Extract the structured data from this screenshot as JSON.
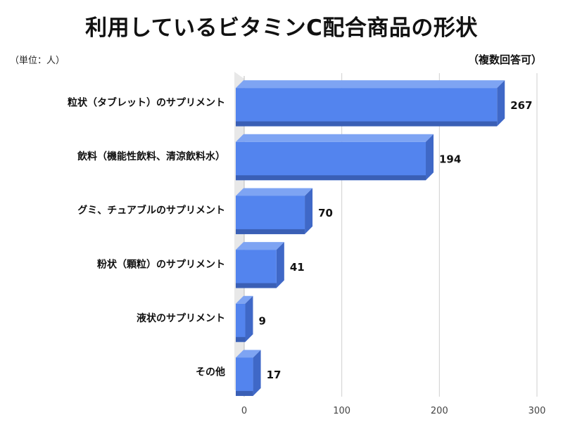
{
  "title": "利用しているビタミンC配合商品の形状",
  "unit_note": "（単位：人）",
  "multi_answer_note": "（複数回答可）",
  "chart_data": {
    "type": "bar",
    "orientation": "horizontal",
    "title": "利用しているビタミンC配合商品の形状",
    "categories": [
      "粒状（タブレット）のサプリメント",
      "飲料（機能性飲料、清涼飲料水）",
      "グミ、チュアブルのサプリメント",
      "粉状（顆粒）のサプリメント",
      "液状のサプリメント",
      "その他"
    ],
    "values": [
      267,
      194,
      70,
      41,
      9,
      17
    ],
    "value_labels": [
      "267",
      "194",
      "70",
      "41",
      "9",
      "17"
    ],
    "xlim": [
      0,
      300
    ],
    "xticks": [
      0,
      100,
      200,
      300
    ],
    "xtick_labels": [
      "0",
      "100",
      "200",
      "300"
    ],
    "grid": true,
    "style": "3d",
    "colors": {
      "bar_front": "#5384EE",
      "bar_top": "#7EA4F3",
      "bar_side": "#3F68C7",
      "bar_bottom": "#3A5FB5",
      "wall": "#E8E8E8",
      "grid": "#CFCFCF"
    }
  }
}
